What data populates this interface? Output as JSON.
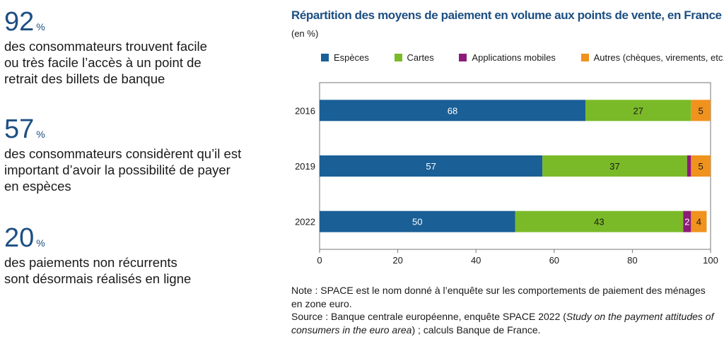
{
  "stats": [
    {
      "value": "92",
      "unit": "%",
      "lines": [
        "des consommateurs trouvent facile",
        "ou très facile l’accès à un point de",
        "retrait des billets de banque"
      ]
    },
    {
      "value": "57",
      "unit": "%",
      "lines": [
        "des consommateurs considèrent qu’il est",
        "important d’avoir la possibilité de payer",
        "en espèces"
      ]
    },
    {
      "value": "20",
      "unit": "%",
      "lines": [
        "des paiements non récurrents",
        "sont désormais réalisés en ligne"
      ]
    }
  ],
  "chart_data": {
    "type": "bar",
    "orientation": "horizontal",
    "stacked": true,
    "title": "Répartition des moyens de paiement en volume aux points de vente, en France",
    "unit": "(en %)",
    "categories": [
      "2016",
      "2019",
      "2022"
    ],
    "series": [
      {
        "name": "Espèces",
        "color": "#1a5f96",
        "values": [
          68,
          57,
          50
        ],
        "labels": [
          "68",
          "57",
          "50"
        ]
      },
      {
        "name": "Cartes",
        "color": "#7aba28",
        "values": [
          27,
          37,
          43
        ],
        "labels": [
          "27",
          "37",
          "43"
        ]
      },
      {
        "name": "Applications mobiles",
        "color": "#8c1a7a",
        "values": [
          0,
          1,
          2
        ],
        "labels": [
          "",
          "",
          "2"
        ]
      },
      {
        "name": "Autres (chèques, virements, etc.)",
        "color": "#f0921e",
        "values": [
          5,
          5,
          4
        ],
        "labels": [
          "5",
          "5",
          "4"
        ]
      }
    ],
    "xlim": [
      0,
      100
    ],
    "xticks": [
      0,
      20,
      40,
      60,
      80,
      100
    ],
    "legend_position": "top",
    "grid": false
  },
  "footnote": {
    "note": "Note : SPACE est le nom donné à l’enquête sur les comportements de paiement des ménages en zone euro.",
    "source_prefix": "Source : Banque centrale européenne, enquête SPACE 2022 (",
    "source_italic": "Study on the payment attitudes of consumers in the euro area",
    "source_suffix": ") ; calculs Banque de France."
  }
}
